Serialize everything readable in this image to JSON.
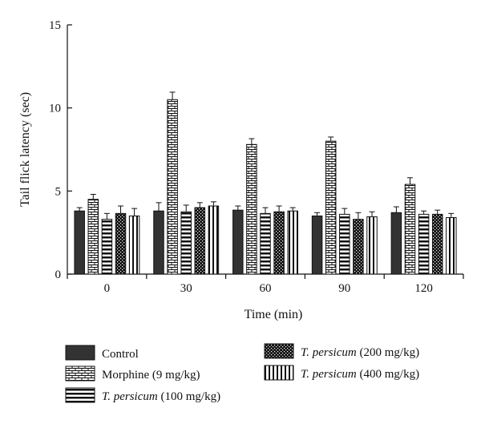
{
  "chart_data": {
    "type": "bar",
    "title": "",
    "xlabel": "Time (min)",
    "ylabel": "Tail flick latency (sec)",
    "ylim": [
      0,
      15
    ],
    "yticks": [
      "0",
      "5",
      "10",
      "15"
    ],
    "grid": false,
    "legend_position": "bottom",
    "categories": [
      "0",
      "30",
      "60",
      "90",
      "120"
    ],
    "series": [
      {
        "name": "Control",
        "legend_italic": "",
        "legend_rest": "Control",
        "pattern": "solid",
        "values": [
          3.8,
          3.8,
          3.85,
          3.5,
          3.7
        ],
        "errors": [
          0.2,
          0.5,
          0.25,
          0.2,
          0.35
        ]
      },
      {
        "name": "Morphine (9 mg/kg)",
        "legend_italic": "",
        "legend_rest": "Morphine (9 mg/kg)",
        "pattern": "brick",
        "values": [
          4.5,
          10.5,
          7.8,
          8.0,
          5.4
        ],
        "errors": [
          0.3,
          0.45,
          0.35,
          0.25,
          0.4
        ]
      },
      {
        "name": "T. persicum (100 mg/kg)",
        "legend_italic": "T. persicum",
        "legend_rest": " (100 mg/kg)",
        "pattern": "hstripe",
        "values": [
          3.3,
          3.75,
          3.65,
          3.6,
          3.6
        ],
        "errors": [
          0.35,
          0.4,
          0.35,
          0.35,
          0.2
        ]
      },
      {
        "name": "T. persicum (200 mg/kg)",
        "legend_italic": "T. persicum",
        "legend_rest": " (200 mg/kg)",
        "pattern": "speckle",
        "values": [
          3.65,
          4.0,
          3.75,
          3.3,
          3.6
        ],
        "errors": [
          0.45,
          0.3,
          0.35,
          0.4,
          0.25
        ]
      },
      {
        "name": "T. persicum (400 mg/kg)",
        "legend_italic": "T. persicum",
        "legend_rest": " (400 mg/kg)",
        "pattern": "vstripe",
        "values": [
          3.5,
          4.1,
          3.8,
          3.45,
          3.4
        ],
        "errors": [
          0.45,
          0.25,
          0.2,
          0.3,
          0.25
        ]
      }
    ]
  }
}
